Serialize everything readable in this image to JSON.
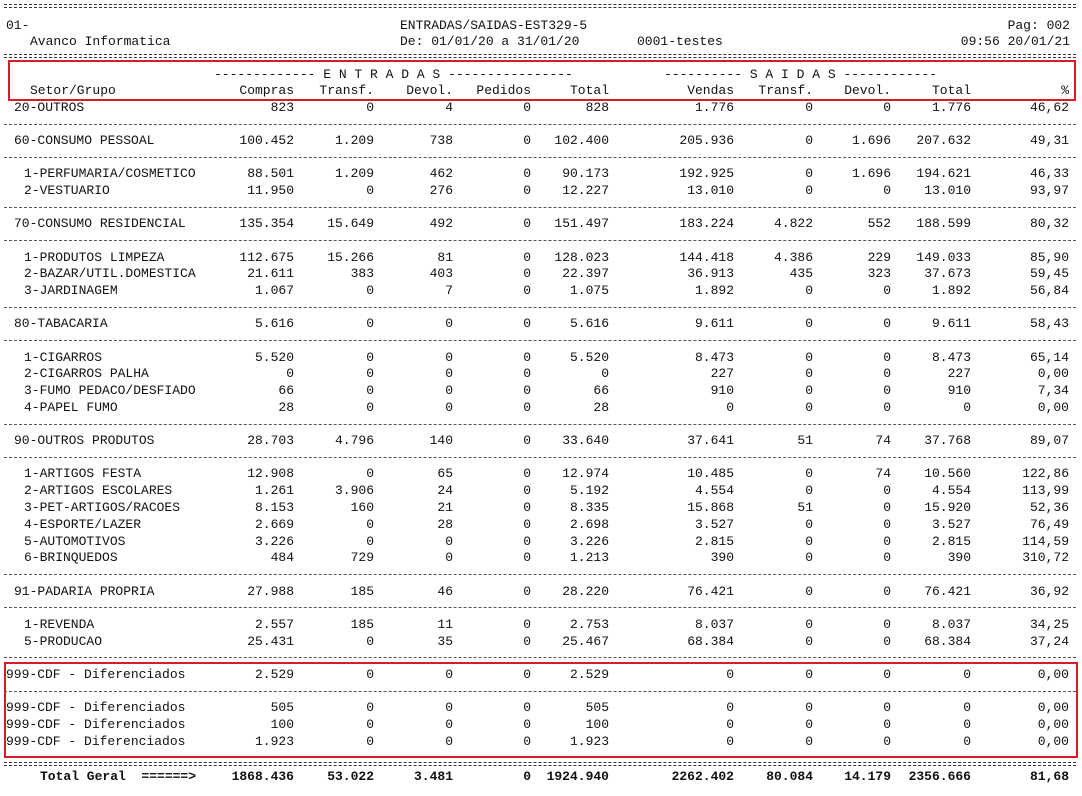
{
  "header": {
    "code": "01-",
    "company": "Avanco Informatica",
    "title": "ENTRADAS/SAIDAS-EST329-5",
    "period": "De: 01/01/20 a 31/01/20",
    "store": "0001-testes",
    "page": "Pag: 002",
    "datetime": "09:56 20/01/21"
  },
  "groups": {
    "entradas": "------------- E N T R A D A S ----------------",
    "saidas": "---------- S A I D A S ------------"
  },
  "columns": [
    "Setor/Grupo",
    "Compras",
    "Transf.",
    "Devol.",
    "Pedidos",
    "Total",
    "Vendas",
    "Transf.",
    "Devol.",
    "Total",
    "%"
  ],
  "rows": [
    {
      "kind": "sec",
      "name": "20-OUTROS",
      "v": [
        "823",
        "0",
        "4",
        "0",
        "828",
        "1.776",
        "0",
        "0",
        "1.776",
        "46,62"
      ]
    },
    {
      "kind": "sep"
    },
    {
      "kind": "sec",
      "name": "60-CONSUMO PESSOAL",
      "v": [
        "100.452",
        "1.209",
        "738",
        "0",
        "102.400",
        "205.936",
        "0",
        "1.696",
        "207.632",
        "49,31"
      ]
    },
    {
      "kind": "sep"
    },
    {
      "kind": "item",
      "name": "1-PERFUMARIA/COSMETICO",
      "v": [
        "88.501",
        "1.209",
        "462",
        "0",
        "90.173",
        "192.925",
        "0",
        "1.696",
        "194.621",
        "46,33"
      ]
    },
    {
      "kind": "item",
      "name": "2-VESTUARIO",
      "v": [
        "11.950",
        "0",
        "276",
        "0",
        "12.227",
        "13.010",
        "0",
        "0",
        "13.010",
        "93,97"
      ]
    },
    {
      "kind": "sep"
    },
    {
      "kind": "sec",
      "name": "70-CONSUMO RESIDENCIAL",
      "v": [
        "135.354",
        "15.649",
        "492",
        "0",
        "151.497",
        "183.224",
        "4.822",
        "552",
        "188.599",
        "80,32"
      ]
    },
    {
      "kind": "sep"
    },
    {
      "kind": "item",
      "name": "1-PRODUTOS LIMPEZA",
      "v": [
        "112.675",
        "15.266",
        "81",
        "0",
        "128.023",
        "144.418",
        "4.386",
        "229",
        "149.033",
        "85,90"
      ]
    },
    {
      "kind": "item",
      "name": "2-BAZAR/UTIL.DOMESTICA",
      "v": [
        "21.611",
        "383",
        "403",
        "0",
        "22.397",
        "36.913",
        "435",
        "323",
        "37.673",
        "59,45"
      ]
    },
    {
      "kind": "item",
      "name": "3-JARDINAGEM",
      "v": [
        "1.067",
        "0",
        "7",
        "0",
        "1.075",
        "1.892",
        "0",
        "0",
        "1.892",
        "56,84"
      ]
    },
    {
      "kind": "sep"
    },
    {
      "kind": "sec",
      "name": "80-TABACARIA",
      "v": [
        "5.616",
        "0",
        "0",
        "0",
        "5.616",
        "9.611",
        "0",
        "0",
        "9.611",
        "58,43"
      ]
    },
    {
      "kind": "sep"
    },
    {
      "kind": "item",
      "name": "1-CIGARROS",
      "v": [
        "5.520",
        "0",
        "0",
        "0",
        "5.520",
        "8.473",
        "0",
        "0",
        "8.473",
        "65,14"
      ]
    },
    {
      "kind": "item",
      "name": "2-CIGARROS PALHA",
      "v": [
        "0",
        "0",
        "0",
        "0",
        "0",
        "227",
        "0",
        "0",
        "227",
        "0,00"
      ]
    },
    {
      "kind": "item",
      "name": "3-FUMO PEDACO/DESFIADO",
      "v": [
        "66",
        "0",
        "0",
        "0",
        "66",
        "910",
        "0",
        "0",
        "910",
        "7,34"
      ]
    },
    {
      "kind": "item",
      "name": "4-PAPEL FUMO",
      "v": [
        "28",
        "0",
        "0",
        "0",
        "28",
        "0",
        "0",
        "0",
        "0",
        "0,00"
      ]
    },
    {
      "kind": "sep"
    },
    {
      "kind": "sec",
      "name": "90-OUTROS PRODUTOS",
      "v": [
        "28.703",
        "4.796",
        "140",
        "0",
        "33.640",
        "37.641",
        "51",
        "74",
        "37.768",
        "89,07"
      ]
    },
    {
      "kind": "sep"
    },
    {
      "kind": "item",
      "name": "1-ARTIGOS FESTA",
      "v": [
        "12.908",
        "0",
        "65",
        "0",
        "12.974",
        "10.485",
        "0",
        "74",
        "10.560",
        "122,86"
      ]
    },
    {
      "kind": "item",
      "name": "2-ARTIGOS ESCOLARES",
      "v": [
        "1.261",
        "3.906",
        "24",
        "0",
        "5.192",
        "4.554",
        "0",
        "0",
        "4.554",
        "113,99"
      ]
    },
    {
      "kind": "item",
      "name": "3-PET-ARTIGOS/RACOES",
      "v": [
        "8.153",
        "160",
        "21",
        "0",
        "8.335",
        "15.868",
        "51",
        "0",
        "15.920",
        "52,36"
      ]
    },
    {
      "kind": "item",
      "name": "4-ESPORTE/LAZER",
      "v": [
        "2.669",
        "0",
        "28",
        "0",
        "2.698",
        "3.527",
        "0",
        "0",
        "3.527",
        "76,49"
      ]
    },
    {
      "kind": "item",
      "name": "5-AUTOMOTIVOS",
      "v": [
        "3.226",
        "0",
        "0",
        "0",
        "3.226",
        "2.815",
        "0",
        "0",
        "2.815",
        "114,59"
      ]
    },
    {
      "kind": "item",
      "name": "6-BRINQUEDOS",
      "v": [
        "484",
        "729",
        "0",
        "0",
        "1.213",
        "390",
        "0",
        "0",
        "390",
        "310,72"
      ]
    },
    {
      "kind": "sep"
    },
    {
      "kind": "sec",
      "name": "91-PADARIA PROPRIA",
      "v": [
        "27.988",
        "185",
        "46",
        "0",
        "28.220",
        "76.421",
        "0",
        "0",
        "76.421",
        "36,92"
      ]
    },
    {
      "kind": "sep"
    },
    {
      "kind": "item",
      "name": "1-REVENDA",
      "v": [
        "2.557",
        "185",
        "11",
        "0",
        "2.753",
        "8.037",
        "0",
        "0",
        "8.037",
        "34,25"
      ]
    },
    {
      "kind": "item",
      "name": "5-PRODUCAO",
      "v": [
        "25.431",
        "0",
        "35",
        "0",
        "25.467",
        "68.384",
        "0",
        "0",
        "68.384",
        "37,24"
      ]
    },
    {
      "kind": "sep"
    },
    {
      "kind": "cdf",
      "name": "999-CDF - Diferenciados",
      "v": [
        "2.529",
        "0",
        "0",
        "0",
        "2.529",
        "0",
        "0",
        "0",
        "0",
        "0,00"
      ]
    },
    {
      "kind": "sep"
    },
    {
      "kind": "cdf",
      "name": "999-CDF - Diferenciados",
      "v": [
        "505",
        "0",
        "0",
        "0",
        "505",
        "0",
        "0",
        "0",
        "0",
        "0,00"
      ]
    },
    {
      "kind": "cdf",
      "name": "999-CDF - Diferenciados",
      "v": [
        "100",
        "0",
        "0",
        "0",
        "100",
        "0",
        "0",
        "0",
        "0",
        "0,00"
      ]
    },
    {
      "kind": "cdf",
      "name": "999-CDF - Diferenciados",
      "v": [
        "1.923",
        "0",
        "0",
        "0",
        "1.923",
        "0",
        "0",
        "0",
        "0",
        "0,00"
      ]
    }
  ],
  "total": {
    "label": "Total Geral  ======>",
    "v": [
      "1868.436",
      "53.022",
      "3.481",
      "0",
      "1924.940",
      "2262.402",
      "80.084",
      "14.179",
      "2356.666",
      "81,68"
    ]
  },
  "annotations": {
    "highlight_color": "#d91c25"
  }
}
